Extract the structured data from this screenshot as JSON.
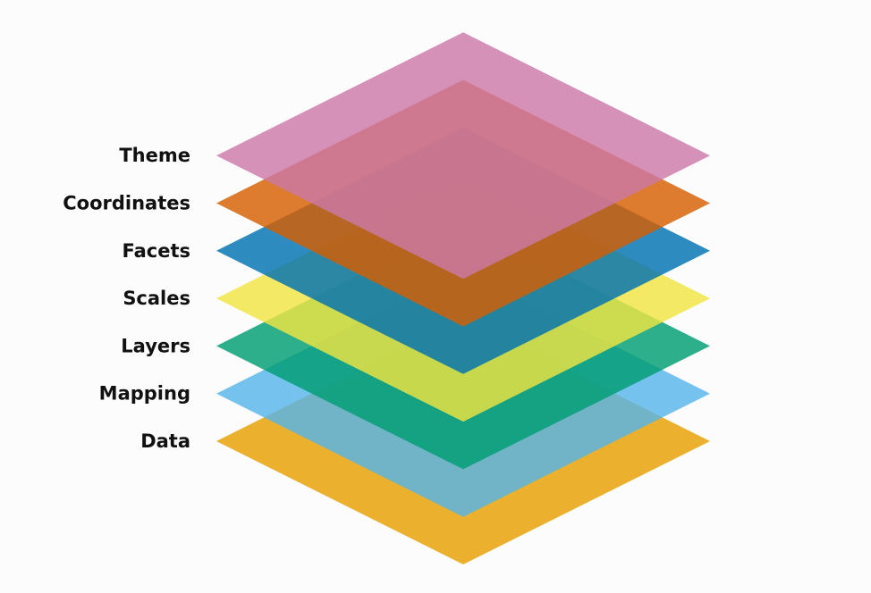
{
  "diagram": {
    "layers": [
      {
        "name": "Data",
        "color": "#E69F00"
      },
      {
        "name": "Mapping",
        "color": "#56B4E9"
      },
      {
        "name": "Layers",
        "color": "#009E73"
      },
      {
        "name": "Scales",
        "color": "#F0E442"
      },
      {
        "name": "Facets",
        "color": "#0072B2"
      },
      {
        "name": "Coordinates",
        "color": "#D55E00"
      },
      {
        "name": "Theme",
        "color": "#CC79A7"
      }
    ]
  }
}
